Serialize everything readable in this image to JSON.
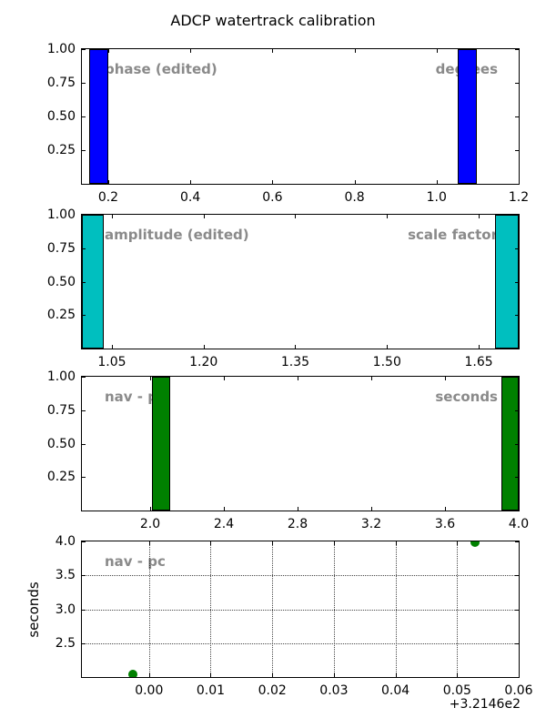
{
  "title": "ADCP watertrack calibration",
  "colors": {
    "hist_phase": "#0000ff",
    "hist_amplitude": "#00bfbf",
    "hist_nav": "#008000",
    "scatter_nav": "#008000",
    "annotation_gray": "#8a8a8a",
    "axis": "#000000"
  },
  "chart_data": [
    {
      "type": "bar",
      "title": "",
      "corner_left": "phase (edited)",
      "corner_right": "degrees",
      "color": "#0000ff",
      "xlim": [
        0.1358,
        1.2
      ],
      "ylim": [
        0,
        1
      ],
      "xticks": [
        0.2,
        0.4,
        0.6,
        0.8,
        1.0,
        1.2
      ],
      "xtick_labels": [
        "0.2",
        "0.4",
        "0.6",
        "0.8",
        "1.0",
        "1.2"
      ],
      "yticks": [
        0.25,
        0.5,
        0.75,
        1.0
      ],
      "ytick_labels": [
        "0.25",
        "0.50",
        "0.75",
        "1.00"
      ],
      "grid": false,
      "bars": [
        {
          "x0": 0.154,
          "x1": 0.2,
          "height": 1.0
        },
        {
          "x0": 1.052,
          "x1": 1.098,
          "height": 1.0
        }
      ]
    },
    {
      "type": "bar",
      "title": "",
      "corner_left": "amplitude (edited)",
      "corner_right": "scale factor",
      "color": "#00bfbf",
      "xlim": [
        1.001,
        1.7154
      ],
      "ylim": [
        0,
        1
      ],
      "xticks": [
        1.05,
        1.2,
        1.35,
        1.5,
        1.65
      ],
      "xtick_labels": [
        "1.05",
        "1.20",
        "1.35",
        "1.50",
        "1.65"
      ],
      "yticks": [
        0.25,
        0.5,
        0.75,
        1.0
      ],
      "ytick_labels": [
        "0.25",
        "0.50",
        "0.75",
        "1.00"
      ],
      "grid": false,
      "bars": [
        {
          "x0": 1.001,
          "x1": 1.0366,
          "height": 1.0
        },
        {
          "x0": 1.6767,
          "x1": 1.7154,
          "height": 1.0
        }
      ]
    },
    {
      "type": "bar",
      "title": "",
      "corner_left": "nav - pc",
      "corner_right": "seconds",
      "color": "#008000",
      "xlim": [
        1.6296,
        4.0
      ],
      "ylim": [
        0,
        1
      ],
      "xticks": [
        2.0,
        2.4,
        2.8,
        3.2,
        3.6,
        4.0
      ],
      "xtick_labels": [
        "2.0",
        "2.4",
        "2.8",
        "3.2",
        "3.6",
        "4.0"
      ],
      "yticks": [
        0.25,
        0.5,
        0.75,
        1.0
      ],
      "ytick_labels": [
        "0.25",
        "0.50",
        "0.75",
        "1.00"
      ],
      "grid": false,
      "bars": [
        {
          "x0": 2.009,
          "x1": 2.109,
          "height": 1.0
        },
        {
          "x0": 3.906,
          "x1": 4.0,
          "height": 1.0
        }
      ]
    },
    {
      "type": "scatter",
      "title": "",
      "corner_left": "nav - pc",
      "ylabel": "seconds",
      "color": "#008000",
      "xlim": [
        -0.0109,
        0.06
      ],
      "ylim": [
        2.0,
        4.0
      ],
      "xticks": [
        0.0,
        0.01,
        0.02,
        0.03,
        0.04,
        0.05,
        0.06
      ],
      "xtick_labels": [
        "0.00",
        "0.01",
        "0.02",
        "0.03",
        "0.04",
        "0.05",
        "0.06"
      ],
      "yticks": [
        2.5,
        3.0,
        3.5,
        4.0
      ],
      "ytick_labels": [
        "2.5",
        "3.0",
        "3.5",
        "4.0"
      ],
      "grid": true,
      "grid_y": [
        2.5,
        3.0,
        3.5
      ],
      "x_offset_label": "+3.2146e2",
      "points": [
        {
          "x": -0.0026,
          "y": 2.04
        },
        {
          "x": 0.0529,
          "y": 3.99
        }
      ]
    }
  ]
}
